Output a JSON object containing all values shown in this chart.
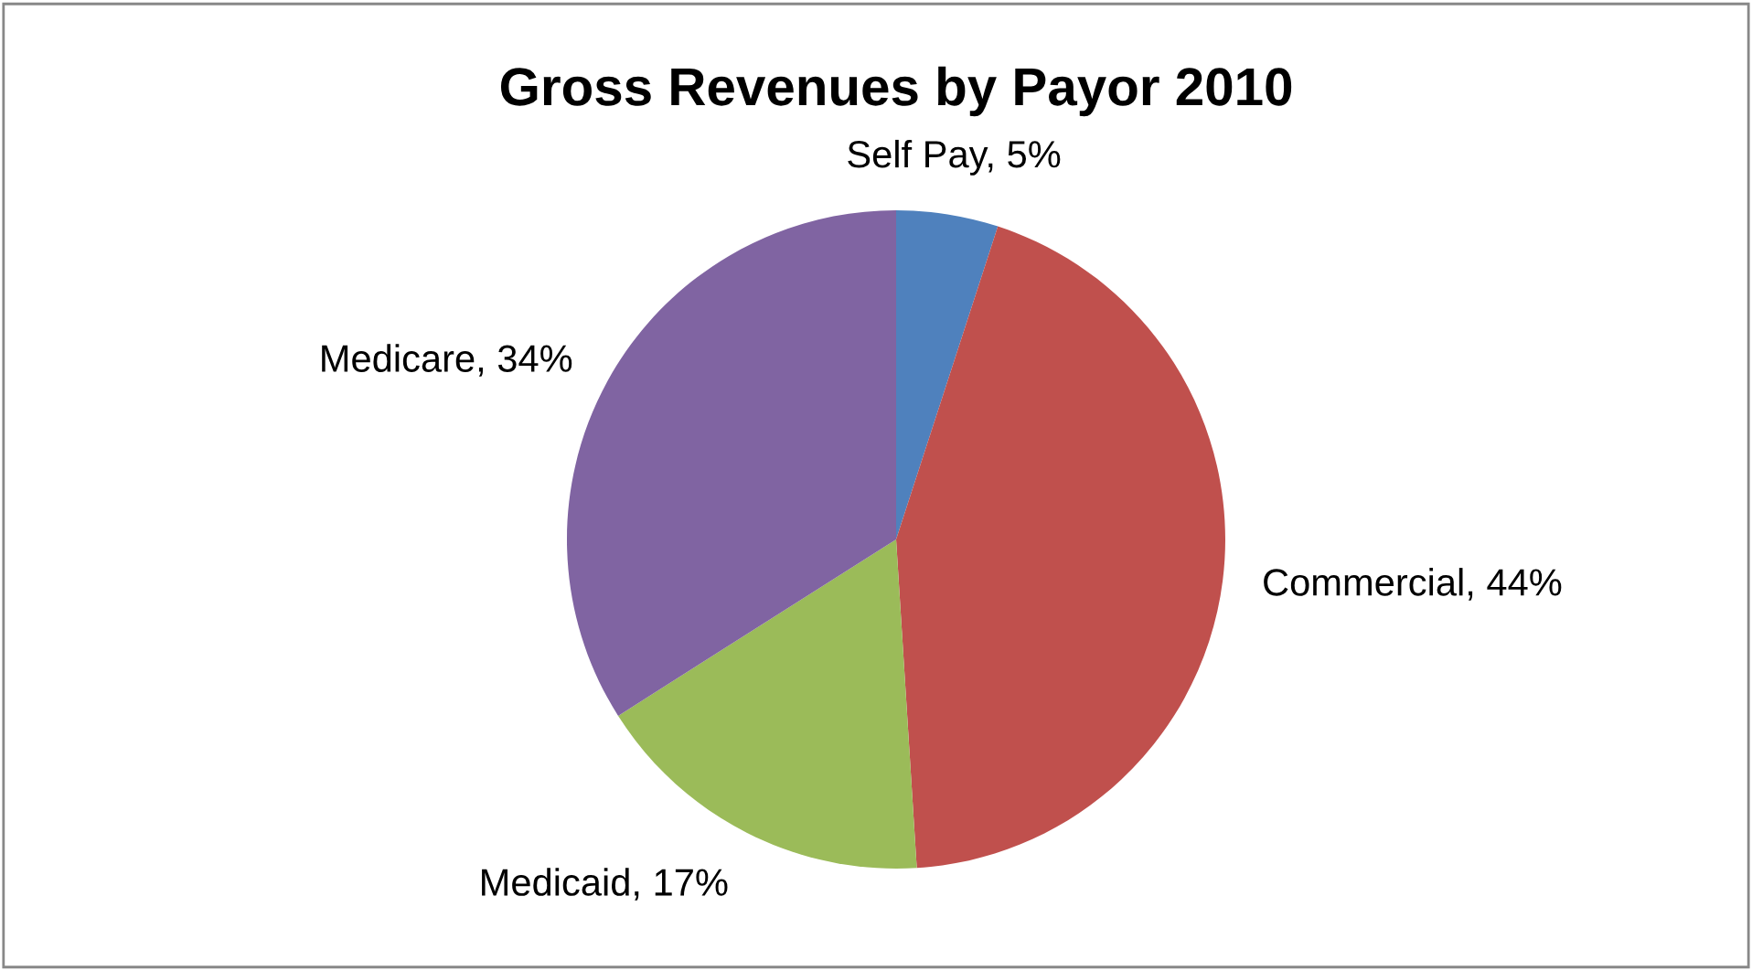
{
  "chart_data": {
    "type": "pie",
    "title": "Gross Revenues by Payor 2010",
    "categories": [
      "Self Pay",
      "Commercial",
      "Medicaid",
      "Medicare"
    ],
    "values": [
      5,
      44,
      17,
      34
    ],
    "value_labels": [
      "5%",
      "44%",
      "17%",
      "34%"
    ],
    "colors": [
      "#4f81bd",
      "#c0504d",
      "#9bbb59",
      "#8064a2"
    ],
    "legend": false
  }
}
